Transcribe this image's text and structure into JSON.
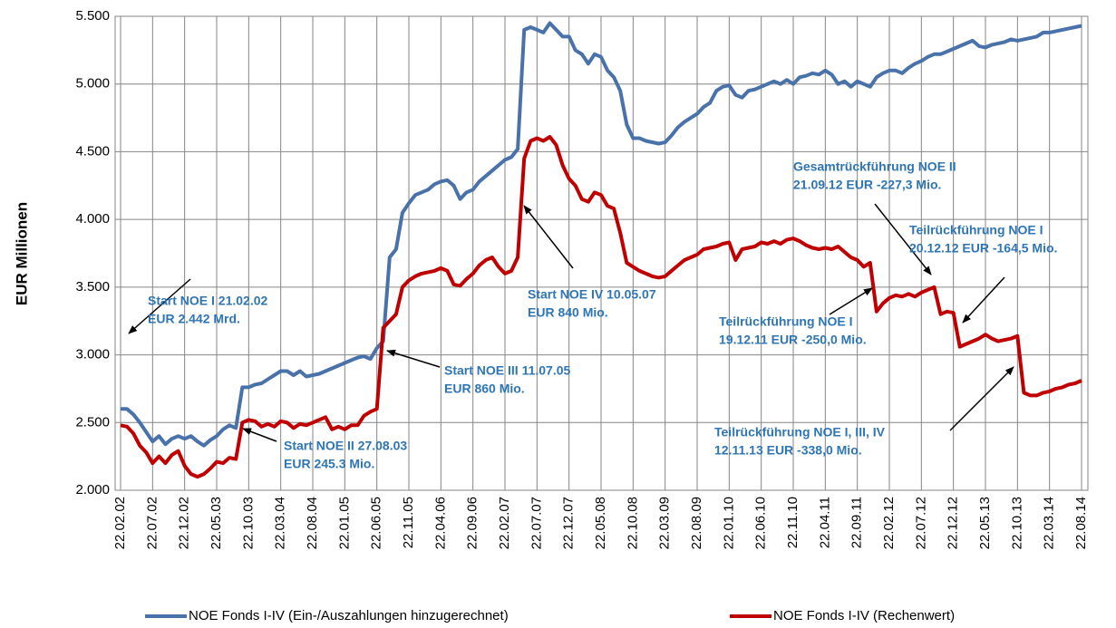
{
  "chart_data": {
    "type": "line",
    "y_label": "EUR Millionen",
    "ylim": [
      2000,
      5500
    ],
    "yticks": [
      {
        "value": 2000,
        "label": "2.000"
      },
      {
        "value": 2500,
        "label": "2.500"
      },
      {
        "value": 3000,
        "label": "3.000"
      },
      {
        "value": 3500,
        "label": "3.500"
      },
      {
        "value": 4000,
        "label": "4.000"
      },
      {
        "value": 4500,
        "label": "4.500"
      },
      {
        "value": 5000,
        "label": "5.000"
      },
      {
        "value": 5500,
        "label": "5.500"
      }
    ],
    "grid": true,
    "legend": "bottom",
    "categories": [
      "22.02.02",
      null,
      null,
      null,
      null,
      "22.07.02",
      null,
      null,
      null,
      null,
      "22.12.02",
      null,
      null,
      null,
      null,
      "22.05.03",
      null,
      null,
      null,
      null,
      "22.10.03",
      null,
      null,
      null,
      null,
      "22.03.04",
      null,
      null,
      null,
      null,
      "22.08.04",
      null,
      null,
      null,
      null,
      "22.01.05",
      null,
      null,
      null,
      null,
      "22.06.05",
      null,
      null,
      null,
      null,
      "22.11.05",
      null,
      null,
      null,
      null,
      "22.04.06",
      null,
      null,
      null,
      null,
      "22.09.06",
      null,
      null,
      null,
      null,
      "22.02.07",
      null,
      null,
      null,
      null,
      "22.07.07",
      null,
      null,
      null,
      null,
      "22.12.07",
      null,
      null,
      null,
      null,
      "22.05.08",
      null,
      null,
      null,
      null,
      "22.10.08",
      null,
      null,
      null,
      null,
      "22.03.09",
      null,
      null,
      null,
      null,
      "22.08.09",
      null,
      null,
      null,
      null,
      "22.01.10",
      null,
      null,
      null,
      null,
      "22.06.10",
      null,
      null,
      null,
      null,
      "22.11.10",
      null,
      null,
      null,
      null,
      "22.04.11",
      null,
      null,
      null,
      null,
      "22.09.11",
      null,
      null,
      null,
      null,
      "22.02.12",
      null,
      null,
      null,
      null,
      "22.07.12",
      null,
      null,
      null,
      null,
      "22.12.12",
      null,
      null,
      null,
      null,
      "22.05.13",
      null,
      null,
      null,
      null,
      "22.10.13",
      null,
      null,
      null,
      null,
      "22.03.14",
      null,
      null,
      null,
      null,
      "22.08.14"
    ],
    "series": [
      {
        "name": "NOE Fonds I-IV (Ein-/Auszahlungen hinzugerechnet)",
        "color": "#4A72AA",
        "values": [
          2600,
          2600,
          2560,
          2500,
          2430,
          2360,
          2400,
          2340,
          2380,
          2400,
          2380,
          2400,
          2360,
          2330,
          2370,
          2400,
          2450,
          2480,
          2460,
          2760,
          2760,
          2780,
          2790,
          2820,
          2850,
          2880,
          2880,
          2850,
          2880,
          2840,
          2850,
          2860,
          2880,
          2900,
          2920,
          2940,
          2960,
          2980,
          2990,
          2970,
          3050,
          3100,
          3720,
          3780,
          4050,
          4120,
          4180,
          4200,
          4220,
          4260,
          4280,
          4290,
          4250,
          4150,
          4200,
          4220,
          4280,
          4320,
          4360,
          4400,
          4440,
          4460,
          4520,
          5400,
          5420,
          5400,
          5380,
          5450,
          5400,
          5350,
          5350,
          5250,
          5220,
          5150,
          5220,
          5200,
          5100,
          5050,
          4950,
          4700,
          4600,
          4600,
          4580,
          4570,
          4560,
          4570,
          4620,
          4680,
          4720,
          4750,
          4780,
          4830,
          4860,
          4950,
          4980,
          4990,
          4920,
          4900,
          4950,
          4960,
          4980,
          5000,
          5020,
          5000,
          5030,
          5000,
          5050,
          5060,
          5080,
          5070,
          5100,
          5070,
          5000,
          5020,
          4980,
          5020,
          5000,
          4980,
          5050,
          5080,
          5100,
          5100,
          5080,
          5120,
          5150,
          5170,
          5200,
          5220,
          5220,
          5240,
          5260,
          5280,
          5300,
          5320,
          5280,
          5270,
          5290,
          5300,
          5310,
          5330,
          5320,
          5330,
          5340,
          5350,
          5380,
          5380,
          5390,
          5400,
          5410,
          5420,
          5430
        ]
      },
      {
        "name": "NOE Fonds I-IV (Rechenwert)",
        "color": "#C00000",
        "values": [
          2480,
          2470,
          2420,
          2330,
          2280,
          2200,
          2250,
          2200,
          2260,
          2290,
          2180,
          2120,
          2100,
          2120,
          2160,
          2210,
          2200,
          2240,
          2230,
          2500,
          2520,
          2510,
          2470,
          2490,
          2470,
          2510,
          2500,
          2460,
          2490,
          2480,
          2500,
          2520,
          2540,
          2450,
          2470,
          2450,
          2480,
          2480,
          2550,
          2580,
          2600,
          3200,
          3250,
          3300,
          3500,
          3550,
          3580,
          3600,
          3610,
          3620,
          3640,
          3620,
          3520,
          3510,
          3560,
          3600,
          3660,
          3700,
          3720,
          3650,
          3600,
          3620,
          3720,
          4450,
          4580,
          4600,
          4580,
          4610,
          4550,
          4400,
          4300,
          4250,
          4150,
          4130,
          4200,
          4180,
          4100,
          4080,
          3900,
          3680,
          3650,
          3620,
          3600,
          3580,
          3570,
          3580,
          3620,
          3660,
          3700,
          3720,
          3740,
          3780,
          3790,
          3800,
          3820,
          3830,
          3700,
          3780,
          3790,
          3800,
          3830,
          3820,
          3840,
          3820,
          3850,
          3860,
          3840,
          3810,
          3790,
          3780,
          3790,
          3780,
          3800,
          3760,
          3720,
          3700,
          3650,
          3680,
          3320,
          3380,
          3420,
          3440,
          3430,
          3450,
          3430,
          3460,
          3480,
          3500,
          3300,
          3320,
          3310,
          3060,
          3080,
          3100,
          3120,
          3150,
          3120,
          3100,
          3110,
          3120,
          3140,
          2720,
          2700,
          2700,
          2720,
          2730,
          2750,
          2760,
          2780,
          2790,
          2810
        ]
      }
    ],
    "annotations": [
      {
        "lines": [
          "Start NOE I 21.02.02",
          "EUR 2.442 Mrd."
        ]
      },
      {
        "lines": [
          "Start NOE II 27.08.03",
          "EUR 245.3 Mio."
        ]
      },
      {
        "lines": [
          "Start NOE III 11.07.05",
          "EUR 860 Mio."
        ]
      },
      {
        "lines": [
          "Start NOE IV 10.05.07",
          "EUR 840 Mio."
        ]
      },
      {
        "lines": [
          "Gesamtrückführung NOE II",
          "21.09.12 EUR -227,3 Mio."
        ]
      },
      {
        "lines": [
          "Teilrückführung NOE I",
          "20.12.12 EUR -164,5 Mio."
        ]
      },
      {
        "lines": [
          "Teilrückführung NOE I",
          "19.12.11 EUR -250,0 Mio."
        ]
      },
      {
        "lines": [
          "Teilrückführung NOE I, III, IV",
          "12.11.13 EUR -338,0 Mio."
        ]
      }
    ]
  }
}
